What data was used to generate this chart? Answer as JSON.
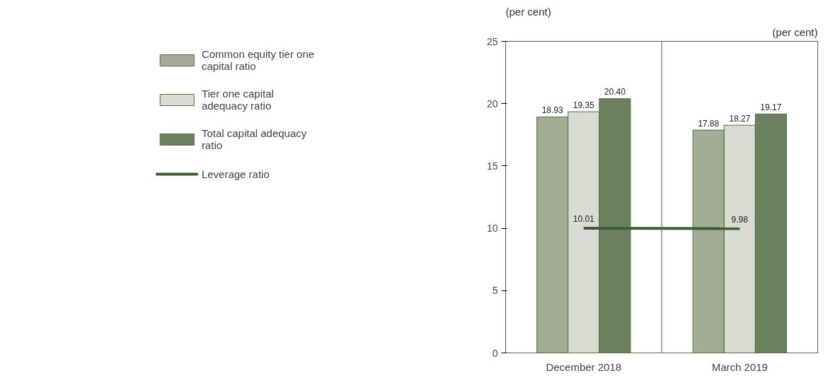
{
  "chart_data": {
    "type": "bar",
    "ylabel": "(per cent)",
    "annotations": [
      "(per cent)"
    ],
    "categories": [
      "December 2018",
      "March 2019"
    ],
    "series": [
      {
        "name": "Common equity tier one capital ratio",
        "color": "#a2ac96",
        "values": [
          18.93,
          17.88
        ],
        "value_labels": [
          "18.93",
          "17.88"
        ]
      },
      {
        "name": "Tier one capital adequacy ratio",
        "color": "#d8dcd2",
        "values": [
          19.35,
          18.27
        ],
        "value_labels": [
          "19.35",
          "18.27"
        ]
      },
      {
        "name": "Total capital adequacy ratio",
        "color": "#6b805e",
        "values": [
          20.4,
          19.17
        ],
        "value_labels": [
          "20.40",
          "19.17"
        ]
      },
      {
        "name": "Leverage ratio",
        "type": "line",
        "color": "#3d5e35",
        "values": [
          10.01,
          9.98
        ],
        "value_labels": [
          "10.01",
          "9.98"
        ]
      }
    ],
    "ylim": [
      0,
      25
    ],
    "yticks": [
      0,
      5,
      10,
      15,
      20,
      25
    ],
    "legend": "left"
  }
}
